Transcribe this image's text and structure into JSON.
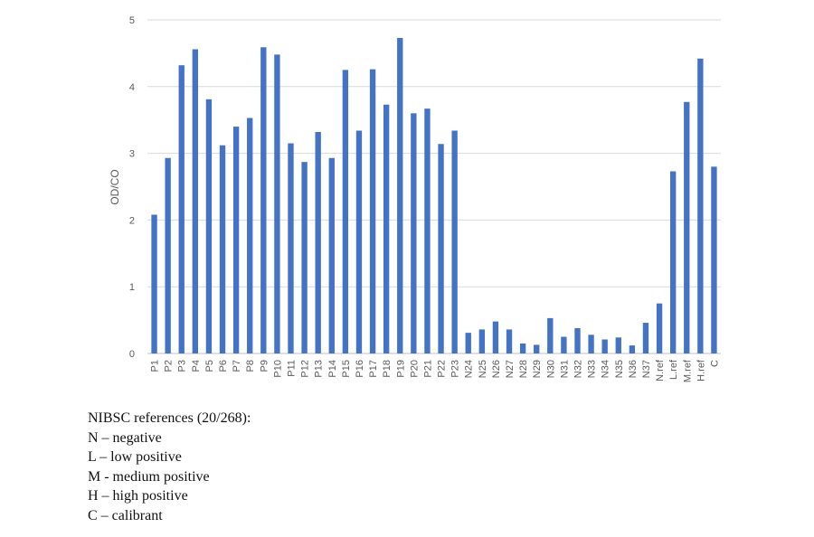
{
  "chart_data": {
    "type": "bar",
    "title": "",
    "xlabel": "",
    "ylabel": "OD/CO",
    "ylim": [
      0,
      5
    ],
    "yticks": [
      0,
      1,
      2,
      3,
      4,
      5
    ],
    "grid": true,
    "legend": "none",
    "bar_color": "#4472C4",
    "categories": [
      "P1",
      "P2",
      "P3",
      "P4",
      "P5",
      "P6",
      "P7",
      "P8",
      "P9",
      "P10",
      "P11",
      "P12",
      "P13",
      "P14",
      "P15",
      "P16",
      "P17",
      "P18",
      "P19",
      "P20",
      "P21",
      "P22",
      "P23",
      "N24",
      "N25",
      "N26",
      "N27",
      "N28",
      "N29",
      "N30",
      "N31",
      "N32",
      "N33",
      "N34",
      "N35",
      "N36",
      "N37",
      "N.ref",
      "L.ref",
      "M.ref",
      "H.ref",
      "C"
    ],
    "values": [
      2.08,
      2.93,
      4.32,
      4.56,
      3.81,
      3.12,
      3.4,
      3.53,
      4.59,
      4.48,
      3.15,
      2.87,
      3.32,
      2.93,
      4.25,
      3.34,
      4.26,
      3.73,
      4.73,
      3.6,
      3.67,
      3.14,
      3.34,
      0.31,
      0.36,
      0.48,
      0.36,
      0.15,
      0.13,
      0.53,
      0.25,
      0.38,
      0.28,
      0.21,
      0.24,
      0.12,
      0.46,
      0.75,
      2.73,
      3.77,
      4.42,
      2.8
    ]
  },
  "notes": {
    "heading": "NIBSC references (20/268):",
    "items": [
      "N – negative",
      "L – low positive",
      "M - medium positive",
      "H – high positive",
      "C – calibrant"
    ]
  }
}
